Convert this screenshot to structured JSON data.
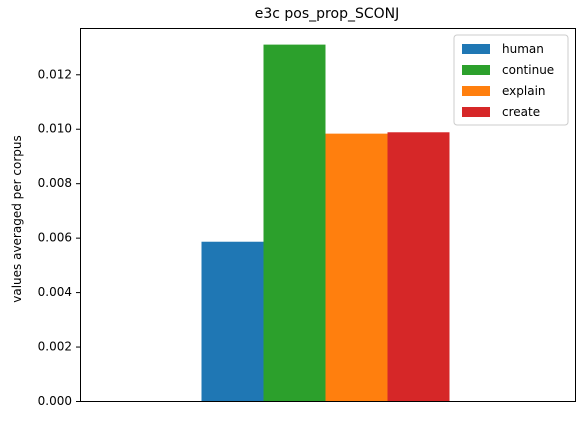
{
  "chart_data": {
    "type": "bar",
    "title": "e3c pos_prop_SCONJ",
    "xlabel": "",
    "ylabel": "values averaged per corpus",
    "ylim": [
      0,
      0.0137
    ],
    "yticks": [
      "0.000",
      "0.002",
      "0.004",
      "0.006",
      "0.008",
      "0.010",
      "0.012"
    ],
    "grid": false,
    "legend_position": "top-right",
    "series": [
      {
        "name": "human",
        "value": 0.00585,
        "color": "#1f77b4"
      },
      {
        "name": "continue",
        "value": 0.01309,
        "color": "#2ca02c"
      },
      {
        "name": "explain",
        "value": 0.00982,
        "color": "#ff7f0e"
      },
      {
        "name": "create",
        "value": 0.00987,
        "color": "#d62728"
      }
    ]
  }
}
